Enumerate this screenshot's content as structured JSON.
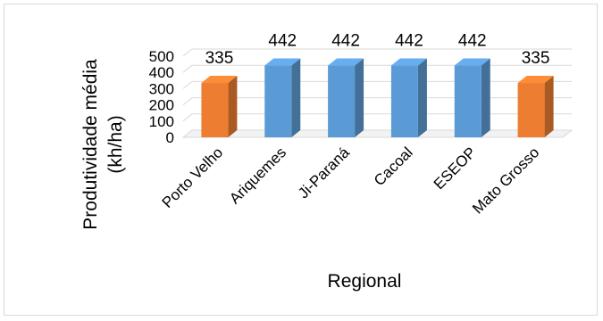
{
  "chart_data": {
    "type": "bar",
    "categories": [
      "Porto Velho",
      "Ariquemes",
      "Ji-Paraná",
      "Cacoal",
      "ESEOP",
      "Mato Grosso"
    ],
    "values": [
      335,
      442,
      442,
      442,
      442,
      335
    ],
    "xlabel": "Regional",
    "ylabel_lines": [
      "Produtividade média",
      "(kh/ha)"
    ],
    "ylim": [
      0,
      500
    ],
    "yticks": [
      0,
      100,
      200,
      300,
      400,
      500
    ],
    "grid": true,
    "legend": "none",
    "data_labels": true,
    "colors": {
      "Porto Velho": "#ed7d31",
      "Ariquemes": "#5b9bd5",
      "Ji-Paraná": "#5b9bd5",
      "Cacoal": "#5b9bd5",
      "ESEOP": "#5b9bd5",
      "Mato Grosso": "#ed7d31"
    }
  }
}
